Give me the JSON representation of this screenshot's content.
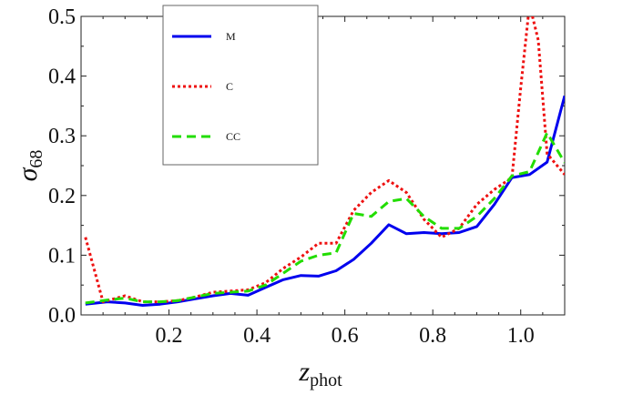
{
  "chart_data": {
    "type": "line",
    "title": "",
    "xlabel": {
      "main": "z",
      "sub": "phot"
    },
    "ylabel": {
      "main": "σ",
      "sub": "68"
    },
    "xlim": [
      0.0,
      1.1
    ],
    "ylim": [
      0.0,
      0.5
    ],
    "xticks": [
      {
        "value": 0.2,
        "label": "0.2"
      },
      {
        "value": 0.4,
        "label": "0.4"
      },
      {
        "value": 0.6,
        "label": "0.6"
      },
      {
        "value": 0.8,
        "label": "0.8"
      },
      {
        "value": 1.0,
        "label": "1.0"
      }
    ],
    "yticks": [
      {
        "value": 0.0,
        "label": "0.0"
      },
      {
        "value": 0.1,
        "label": "0.1"
      },
      {
        "value": 0.2,
        "label": "0.2"
      },
      {
        "value": 0.3,
        "label": "0.3"
      },
      {
        "value": 0.4,
        "label": "0.4"
      },
      {
        "value": 0.5,
        "label": "0.5"
      }
    ],
    "grid": false,
    "legend": "top-left",
    "series": [
      {
        "name": "M",
        "color": "#0000ee",
        "dash": "solid",
        "points": [
          [
            0.01,
            0.018
          ],
          [
            0.06,
            0.022
          ],
          [
            0.1,
            0.02
          ],
          [
            0.14,
            0.016
          ],
          [
            0.18,
            0.018
          ],
          [
            0.22,
            0.022
          ],
          [
            0.26,
            0.027
          ],
          [
            0.3,
            0.032
          ],
          [
            0.34,
            0.036
          ],
          [
            0.38,
            0.033
          ],
          [
            0.42,
            0.046
          ],
          [
            0.46,
            0.059
          ],
          [
            0.5,
            0.066
          ],
          [
            0.54,
            0.065
          ],
          [
            0.58,
            0.074
          ],
          [
            0.62,
            0.093
          ],
          [
            0.66,
            0.12
          ],
          [
            0.7,
            0.151
          ],
          [
            0.74,
            0.136
          ],
          [
            0.78,
            0.138
          ],
          [
            0.82,
            0.136
          ],
          [
            0.86,
            0.138
          ],
          [
            0.9,
            0.148
          ],
          [
            0.94,
            0.185
          ],
          [
            0.98,
            0.23
          ],
          [
            1.02,
            0.235
          ],
          [
            1.06,
            0.256
          ],
          [
            1.1,
            0.367
          ]
        ]
      },
      {
        "name": "C",
        "color": "#ee1111",
        "dash": "dotted",
        "points": [
          [
            0.01,
            0.13
          ],
          [
            0.05,
            0.022
          ],
          [
            0.1,
            0.032
          ],
          [
            0.14,
            0.022
          ],
          [
            0.18,
            0.022
          ],
          [
            0.22,
            0.024
          ],
          [
            0.26,
            0.03
          ],
          [
            0.3,
            0.038
          ],
          [
            0.34,
            0.04
          ],
          [
            0.38,
            0.042
          ],
          [
            0.42,
            0.054
          ],
          [
            0.46,
            0.078
          ],
          [
            0.5,
            0.097
          ],
          [
            0.54,
            0.12
          ],
          [
            0.58,
            0.12
          ],
          [
            0.62,
            0.175
          ],
          [
            0.66,
            0.205
          ],
          [
            0.7,
            0.225
          ],
          [
            0.74,
            0.205
          ],
          [
            0.78,
            0.16
          ],
          [
            0.82,
            0.13
          ],
          [
            0.86,
            0.145
          ],
          [
            0.9,
            0.185
          ],
          [
            0.94,
            0.21
          ],
          [
            0.98,
            0.23
          ],
          [
            1.0,
            0.38
          ],
          [
            1.02,
            0.52
          ],
          [
            1.04,
            0.46
          ],
          [
            1.06,
            0.27
          ],
          [
            1.1,
            0.235
          ]
        ]
      },
      {
        "name": "CC",
        "color": "#22dd00",
        "dash": "dashed",
        "points": [
          [
            0.01,
            0.02
          ],
          [
            0.06,
            0.025
          ],
          [
            0.1,
            0.028
          ],
          [
            0.14,
            0.022
          ],
          [
            0.18,
            0.022
          ],
          [
            0.22,
            0.024
          ],
          [
            0.26,
            0.03
          ],
          [
            0.3,
            0.036
          ],
          [
            0.34,
            0.038
          ],
          [
            0.38,
            0.04
          ],
          [
            0.42,
            0.05
          ],
          [
            0.46,
            0.07
          ],
          [
            0.5,
            0.09
          ],
          [
            0.54,
            0.1
          ],
          [
            0.58,
            0.104
          ],
          [
            0.62,
            0.17
          ],
          [
            0.66,
            0.165
          ],
          [
            0.7,
            0.19
          ],
          [
            0.74,
            0.195
          ],
          [
            0.78,
            0.165
          ],
          [
            0.82,
            0.145
          ],
          [
            0.86,
            0.145
          ],
          [
            0.9,
            0.165
          ],
          [
            0.94,
            0.195
          ],
          [
            0.98,
            0.233
          ],
          [
            1.02,
            0.24
          ],
          [
            1.06,
            0.305
          ],
          [
            1.1,
            0.255
          ]
        ]
      }
    ]
  }
}
